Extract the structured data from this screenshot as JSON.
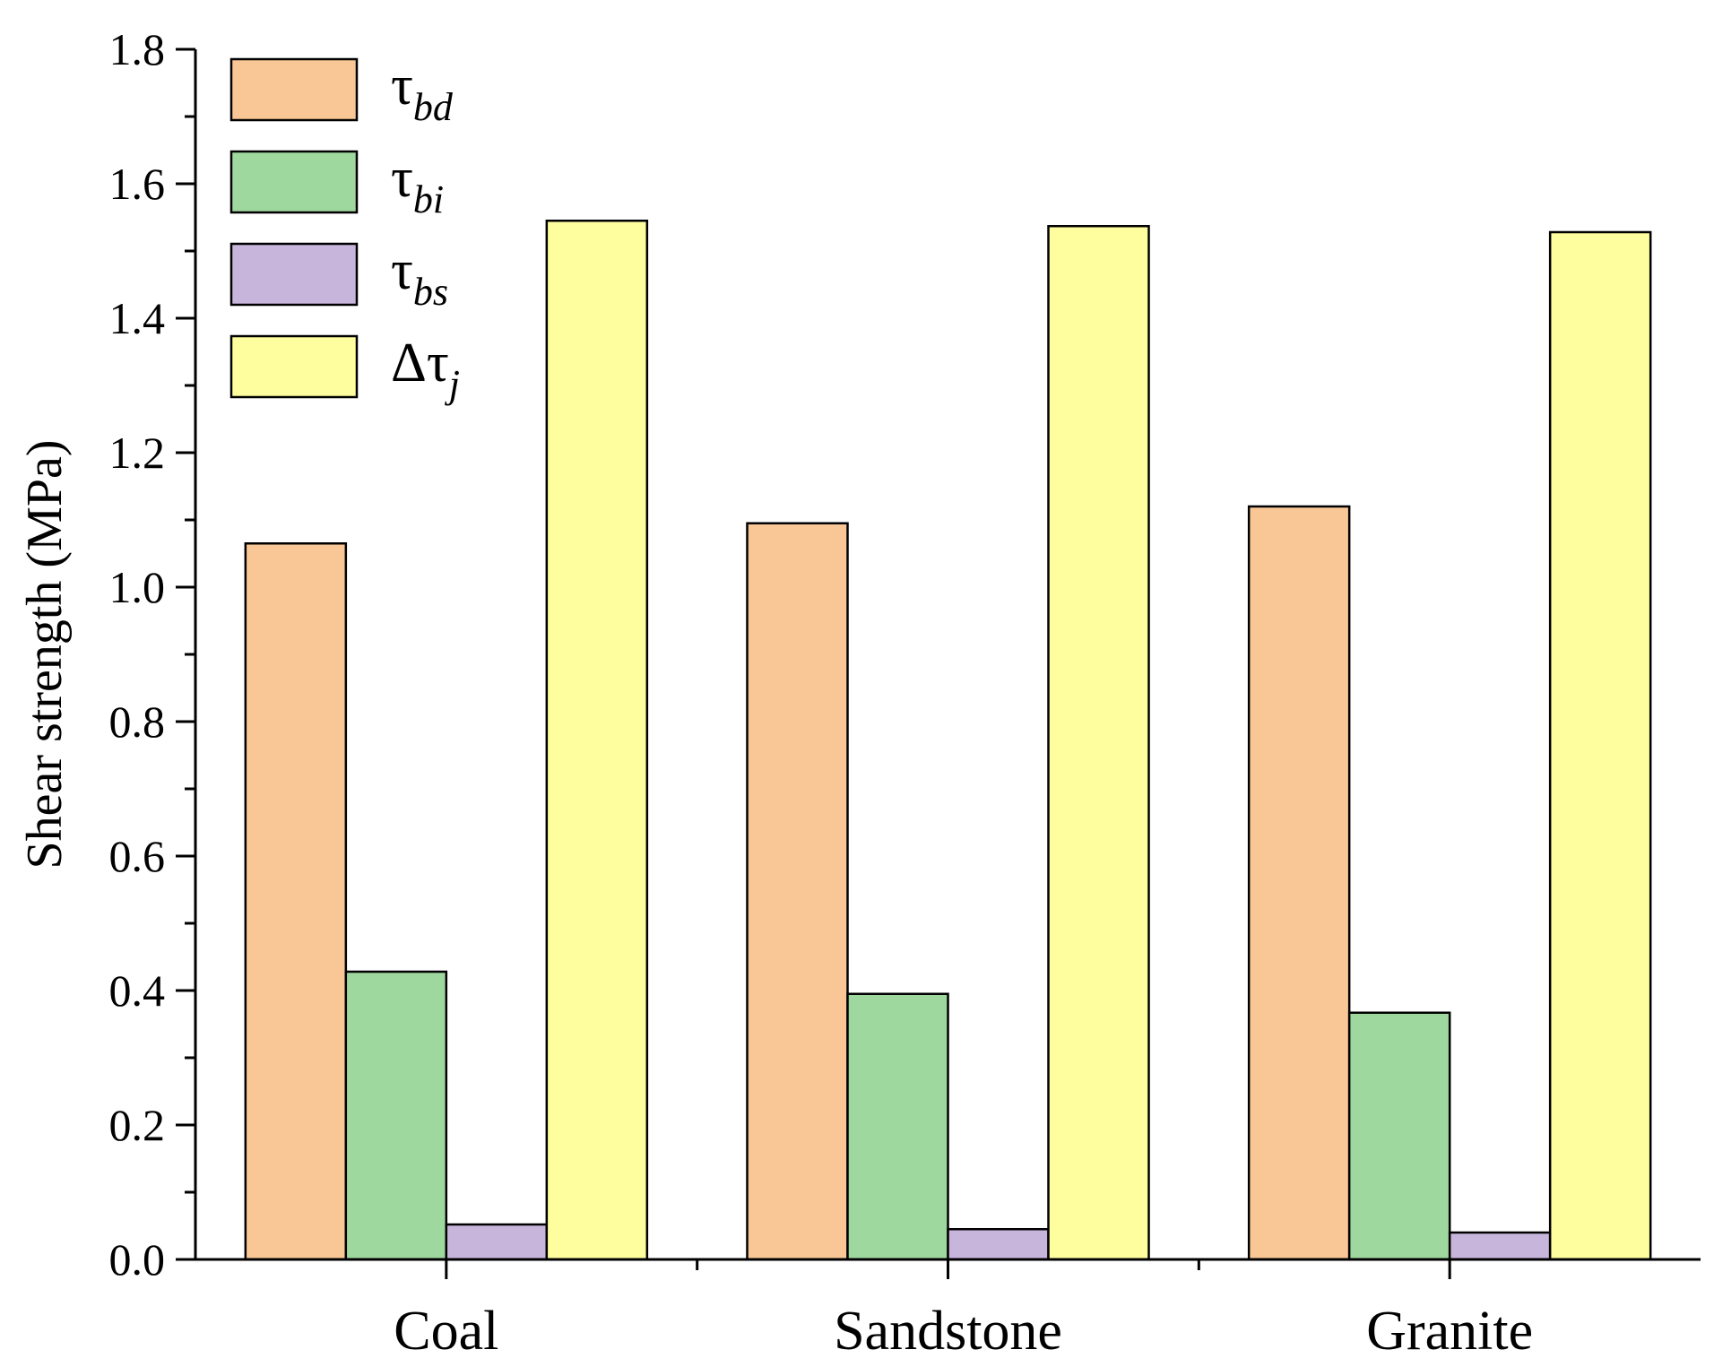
{
  "chart_data": {
    "type": "bar",
    "title": "",
    "xlabel": "",
    "ylabel": "Shear strength (MPa)",
    "ylim": [
      0,
      1.8
    ],
    "ytick_step": 0.2,
    "ytick_labels": [
      "0.0",
      "0.2",
      "0.4",
      "0.6",
      "0.8",
      "1.0",
      "1.2",
      "1.4",
      "1.6",
      "1.8"
    ],
    "categories": [
      "Coal",
      "Sandstone",
      "Granite"
    ],
    "series": [
      {
        "name": "τbd",
        "symbol": "τ",
        "subscript": "bd",
        "color": "#F9C795",
        "values": [
          1.065,
          1.095,
          1.12
        ]
      },
      {
        "name": "τbi",
        "symbol": "τ",
        "subscript": "bi",
        "color": "#9FD89E",
        "values": [
          0.428,
          0.395,
          0.367
        ]
      },
      {
        "name": "τbs",
        "symbol": "τ",
        "subscript": "bs",
        "color": "#C7B5DB",
        "values": [
          0.052,
          0.045,
          0.04
        ]
      },
      {
        "name": "Δτj",
        "symbol": "Δτ",
        "subscript": "j",
        "color": "#FFFE9E",
        "values": [
          1.545,
          1.537,
          1.528
        ]
      }
    ],
    "grid": false,
    "legend_position": "top-left"
  }
}
